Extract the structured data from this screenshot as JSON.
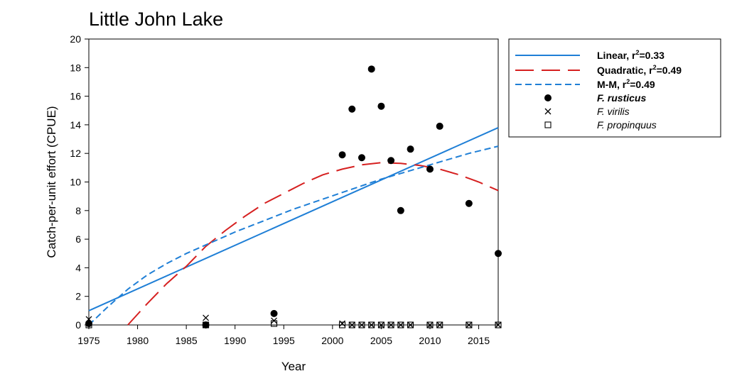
{
  "chart_data": {
    "type": "scatter",
    "title": "Little John Lake",
    "xlabel": "Year",
    "ylabel": "Catch-per-unit effort (CPUE)",
    "xlim": [
      1975,
      2017
    ],
    "ylim": [
      0,
      20
    ],
    "x_ticks": [
      1975,
      1980,
      1985,
      1990,
      1995,
      2000,
      2005,
      2010,
      2015
    ],
    "y_ticks": [
      0,
      2,
      4,
      6,
      8,
      10,
      12,
      14,
      16,
      18,
      20
    ],
    "grid": false,
    "legend_position": "right, outside plot",
    "points": [
      {
        "name": "F. rusticus",
        "marker": "filled-circle",
        "x": [
          1975,
          1987,
          1994,
          2001,
          2002,
          2003,
          2004,
          2005,
          2006,
          2007,
          2008,
          2010,
          2011,
          2014,
          2017
        ],
        "y": [
          0.1,
          0,
          0.8,
          11.9,
          15.1,
          11.7,
          17.9,
          15.3,
          11.5,
          8.0,
          12.3,
          10.9,
          13.9,
          8.5,
          5.0
        ]
      },
      {
        "name": "F. virilis",
        "marker": "x",
        "x": [
          1975,
          1987,
          1994,
          2001,
          2002,
          2003,
          2004,
          2005,
          2006,
          2007,
          2008,
          2010,
          2011,
          2014,
          2017
        ],
        "y": [
          0.4,
          0.5,
          0.3,
          0.1,
          0,
          0,
          0,
          0,
          0,
          0,
          0,
          0,
          0,
          0,
          0
        ]
      },
      {
        "name": "F. propinquus",
        "marker": "open-square",
        "x": [
          1975,
          1987,
          1994,
          2001,
          2002,
          2003,
          2004,
          2005,
          2006,
          2007,
          2008,
          2010,
          2011,
          2014,
          2017
        ],
        "y": [
          0,
          0,
          0.1,
          0,
          0,
          0,
          0,
          0,
          0,
          0,
          0,
          0,
          0,
          0,
          0
        ]
      }
    ],
    "lines": [
      {
        "name": "Linear, r²=0.33",
        "label_prefix": "Linear, r",
        "label_sup": "2",
        "label_suffix": "=0.33",
        "style": "solid",
        "color": "#1f7fd6",
        "x": [
          1975,
          2017
        ],
        "y": [
          1.0,
          13.8
        ]
      },
      {
        "name": "Quadratic, r²=0.49",
        "label_prefix": "Quadratic, r",
        "label_sup": "2",
        "label_suffix": "=0.49",
        "style": "long-dash",
        "color": "#d62020",
        "x": [
          1979,
          1981,
          1983,
          1985,
          1987,
          1989,
          1991,
          1993,
          1995,
          1997,
          1999,
          2001,
          2003,
          2005,
          2007,
          2009,
          2011,
          2013,
          2015,
          2017
        ],
        "y": [
          0,
          1.5,
          2.9,
          4.1,
          5.5,
          6.6,
          7.6,
          8.5,
          9.2,
          9.9,
          10.5,
          10.9,
          11.2,
          11.35,
          11.3,
          11.15,
          10.9,
          10.5,
          10.0,
          9.4
        ]
      },
      {
        "name": "M-M, r²=0.49",
        "label_prefix": "M-M, r",
        "label_sup": "2",
        "label_suffix": "=0.49",
        "style": "short-dash",
        "color": "#1f7fd6",
        "x": [
          1975,
          1977,
          1979,
          1981,
          1983,
          1985,
          1987,
          1990,
          1993,
          1996,
          1999,
          2002,
          2005,
          2008,
          2011,
          2014,
          2017
        ],
        "y": [
          0,
          1.3,
          2.5,
          3.5,
          4.3,
          5.0,
          5.6,
          6.5,
          7.3,
          8.1,
          8.8,
          9.5,
          10.2,
          10.8,
          11.4,
          12.0,
          12.5
        ]
      }
    ]
  }
}
